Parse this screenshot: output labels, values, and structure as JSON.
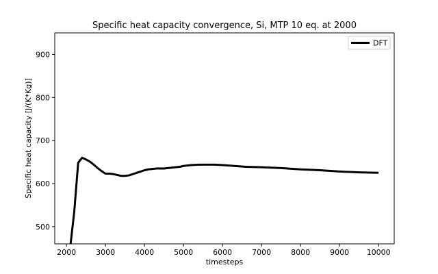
{
  "chart_data": {
    "type": "line",
    "title": "Specific heat capacity convergence, Si, MTP 10 eq. at 2000",
    "xlabel": "timesteps",
    "ylabel": "Specific heat capacity [J/(K*Kg)]",
    "xlim": [
      1700,
      10400
    ],
    "ylim": [
      460,
      950
    ],
    "xticks": [
      2000,
      3000,
      4000,
      5000,
      6000,
      7000,
      8000,
      9000,
      10000
    ],
    "yticks": [
      500,
      600,
      700,
      800,
      900
    ],
    "grid": false,
    "legend_position": "top-right",
    "series": [
      {
        "name": "DFT",
        "color": "#000000",
        "x": [
          2100,
          2200,
          2300,
          2400,
          2500,
          2600,
          2700,
          2800,
          2900,
          3000,
          3100,
          3200,
          3300,
          3400,
          3500,
          3600,
          3700,
          3800,
          3900,
          4000,
          4100,
          4200,
          4300,
          4400,
          4500,
          4600,
          4700,
          4800,
          4900,
          5000,
          5200,
          5400,
          5600,
          5800,
          6000,
          6300,
          6600,
          7000,
          7500,
          8000,
          8500,
          9000,
          9500,
          10000
        ],
        "y": [
          455,
          535,
          648,
          660,
          656,
          651,
          644,
          636,
          629,
          623,
          623,
          622,
          620,
          618,
          618,
          619,
          622,
          625,
          628,
          631,
          633,
          634,
          635,
          635,
          635,
          636,
          637,
          638,
          639,
          641,
          643,
          644,
          644,
          644,
          643,
          641,
          639,
          638,
          636,
          633,
          631,
          628,
          626,
          625
        ]
      }
    ]
  }
}
